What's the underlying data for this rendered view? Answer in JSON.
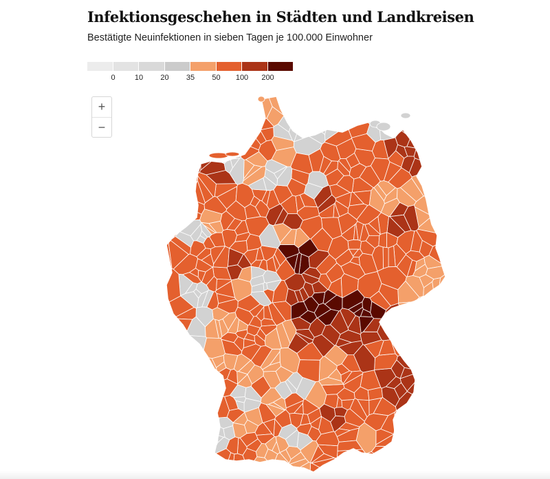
{
  "header": {
    "title": "Infektionsgeschehen in Städten und Landkreisen",
    "subtitle": "Bestätigte Neuinfektionen in sieben Tagen je 100.000 Einwohner"
  },
  "legend": {
    "colors": [
      "#ececec",
      "#e3e3e3",
      "#d9d9d9",
      "#cbcbcb",
      "#f4a06a",
      "#e4602e",
      "#ab3417",
      "#5a0a00"
    ],
    "ticks": [
      "0",
      "10",
      "20",
      "35",
      "50",
      "100",
      "200"
    ]
  },
  "zoom": {
    "zoom_in_label": "+",
    "zoom_out_label": "−"
  },
  "map": {
    "fill_colors": {
      "grey": "#d2d2d2",
      "light_orange": "#f4a06a",
      "orange": "#e4602e",
      "red_brown": "#ab3417",
      "dark": "#5a0a00"
    },
    "border_color": "#ffffff"
  }
}
